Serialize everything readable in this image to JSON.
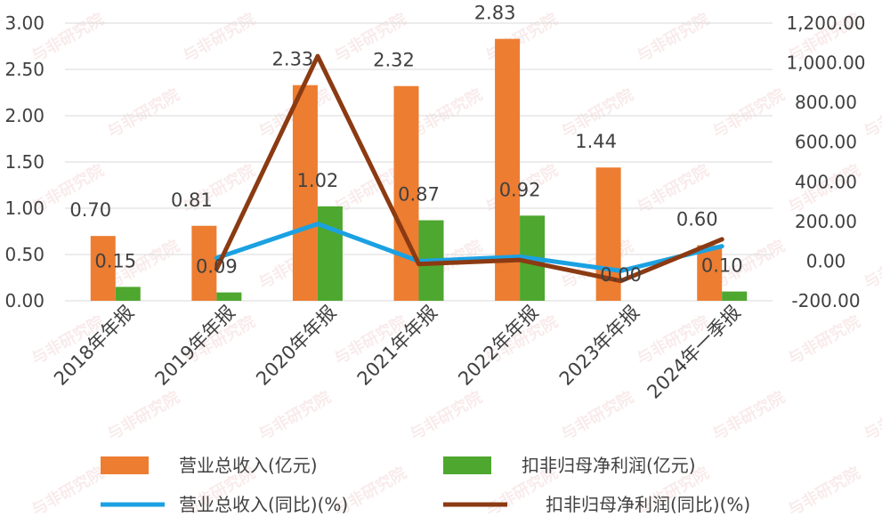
{
  "chart_data": {
    "type": "bar",
    "categories": [
      "2018年年报",
      "2019年年报",
      "2020年年报",
      "2021年年报",
      "2022年年报",
      "2023年年报",
      "2024年一季报"
    ],
    "y_left": {
      "ticks": [
        "3.00",
        "2.50",
        "2.00",
        "1.50",
        "1.00",
        "0.50",
        "0.00"
      ],
      "min": 0,
      "max": 3
    },
    "y_right": {
      "ticks": [
        "1,200.00",
        "1,000.00",
        "800.00",
        "600.00",
        "400.00",
        "200.00",
        "0.00",
        "-200.00"
      ],
      "min": -200,
      "max": 1200
    },
    "grid": true,
    "legend_position": "bottom",
    "series": [
      {
        "name": "营业总收入(亿元)",
        "kind": "bar",
        "axis": "left",
        "color": "#ED7D31",
        "values": [
          0.7,
          0.81,
          2.33,
          2.32,
          2.83,
          1.44,
          0.6
        ],
        "labels": [
          "0.70",
          "0.81",
          "2.33",
          "2.32",
          "2.83",
          "1.44",
          "0.60"
        ]
      },
      {
        "name": "扣非归母净利润(亿元)",
        "kind": "bar",
        "axis": "left",
        "color": "#4EA72E",
        "values": [
          0.15,
          0.09,
          1.02,
          0.87,
          0.92,
          0.0,
          0.1
        ],
        "labels": [
          "0.15",
          "0.09",
          "1.02",
          "0.87",
          "0.92",
          "0.00",
          "0.10"
        ]
      },
      {
        "name": "营业总收入(同比)(%)",
        "kind": "line",
        "axis": "right",
        "color": "#1BA1E2",
        "values": [
          null,
          15.7,
          187.7,
          -0.4,
          22.0,
          -49.1,
          75.0
        ]
      },
      {
        "name": "扣非归母净利润(同比)(%)",
        "kind": "line",
        "axis": "right",
        "color": "#8B3A12",
        "values": [
          null,
          -40.0,
          1033.3,
          -14.7,
          5.7,
          -100.0,
          110.0
        ]
      }
    ],
    "legend": [
      "营业总收入(亿元)",
      "扣非归母净利润(亿元)",
      "营业总收入(同比)(%)",
      "扣非归母净利润(同比)(%)"
    ]
  },
  "watermark": {
    "text": "与非研究院"
  }
}
